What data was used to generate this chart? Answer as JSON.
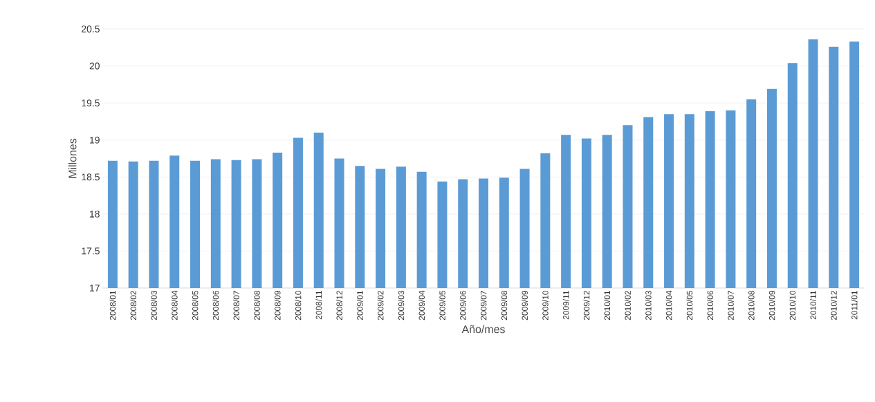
{
  "chart_data": {
    "type": "bar",
    "xlabel": "Año/mes",
    "ylabel": "Millones",
    "categories": [
      "2008/01",
      "2008/02",
      "2008/03",
      "2008/04",
      "2008/05",
      "2008/06",
      "2008/07",
      "2008/08",
      "2008/09",
      "2008/10",
      "2008/11",
      "2008/12",
      "2009/01",
      "2009/02",
      "2009/03",
      "2009/04",
      "2009/05",
      "2009/06",
      "2009/07",
      "2009/08",
      "2009/09",
      "2009/10",
      "2009/11",
      "2009/12",
      "2010/01",
      "2010/02",
      "2010/03",
      "2010/04",
      "2010/05",
      "2010/06",
      "2010/07",
      "2010/08",
      "2010/09",
      "2010/10",
      "2010/11",
      "2010/12",
      "2011/01"
    ],
    "values": [
      18.72,
      18.71,
      18.72,
      18.79,
      18.72,
      18.74,
      18.73,
      18.74,
      18.83,
      19.03,
      19.1,
      18.75,
      18.65,
      18.61,
      18.64,
      18.57,
      18.44,
      18.47,
      18.48,
      18.49,
      18.61,
      18.82,
      19.07,
      19.02,
      19.07,
      19.2,
      19.31,
      19.35,
      19.35,
      19.39,
      19.4,
      19.55,
      19.69,
      20.04,
      20.36,
      20.26,
      20.33
    ],
    "color": "#5b9bd5",
    "ylim": [
      17,
      20.5
    ],
    "yticks": [
      17,
      17.5,
      18,
      18.5,
      19,
      19.5,
      20,
      20.5
    ],
    "grid": "y"
  }
}
